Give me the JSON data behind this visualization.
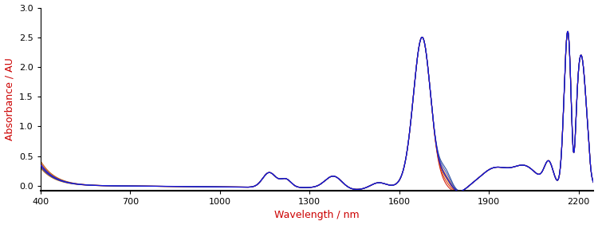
{
  "xlabel": "Wavelength / nm",
  "ylabel": "Absorbance / AU",
  "xlabel_color": "#cc0000",
  "ylabel_color": "#cc0000",
  "xlim": [
    400,
    2250
  ],
  "ylim": [
    -0.08,
    3.0
  ],
  "yticks": [
    0.0,
    0.5,
    1.0,
    1.5,
    2.0,
    2.5,
    3.0
  ],
  "xticks": [
    400,
    700,
    1000,
    1300,
    1600,
    1900,
    2200
  ],
  "background_color": "#ffffff",
  "line_color_main": "#1515dd",
  "line_colors_secondary": [
    "#cc1100",
    "#dd3300",
    "#bb5500",
    "#ee7700",
    "#3355bb",
    "#224499"
  ],
  "num_spectra": 6,
  "linewidth_main": 0.9,
  "linewidth_secondary": 0.8
}
